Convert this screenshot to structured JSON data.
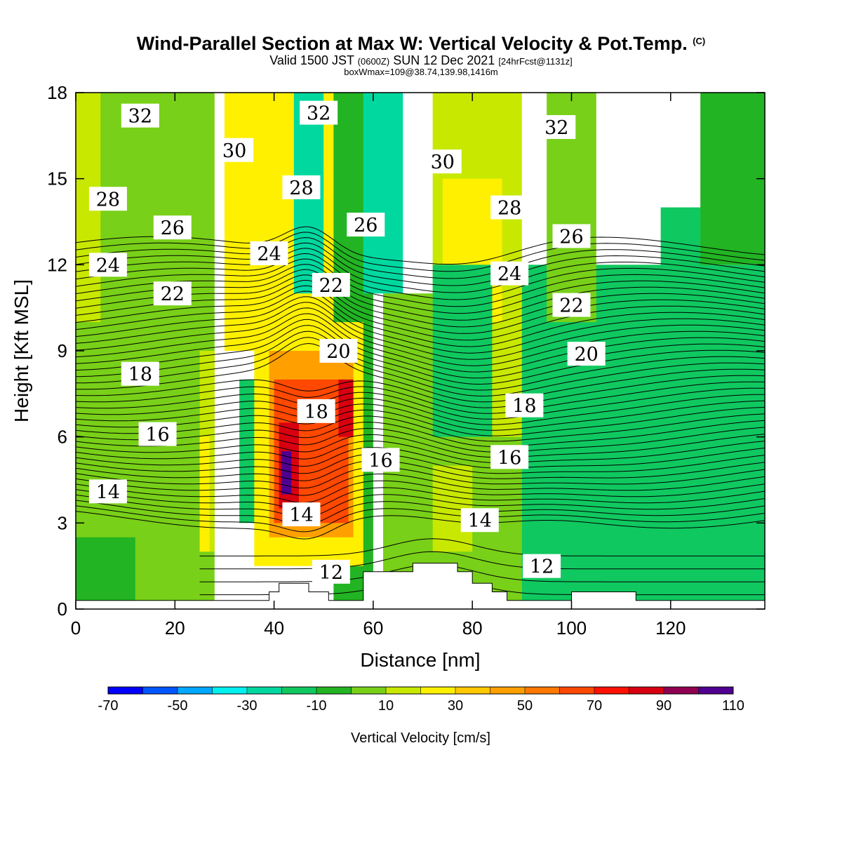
{
  "title": {
    "main": "Wind-Parallel Section at Max W: Vertical Velocity & Pot.Temp.",
    "copyright": "(C)",
    "valid_prefix": "Valid 1500 JST",
    "valid_utc": "(0600Z)",
    "valid_date": "SUN 12 Dec 2021",
    "forecast": "[24hrFcst@1131z]",
    "boxwmax": "boxWmax=109@38.74,139.98,1416m"
  },
  "chart_data": {
    "type": "heatmap",
    "xlabel": "Distance [nm]",
    "ylabel": "Height [Kft MSL]",
    "xlim": [
      0,
      139
    ],
    "ylim": [
      0,
      18
    ],
    "x_ticks": [
      "0",
      "20",
      "40",
      "60",
      "80",
      "100",
      "120"
    ],
    "y_ticks": [
      "0",
      "3",
      "6",
      "9",
      "12",
      "15",
      "18"
    ],
    "colorbar": {
      "title": "Vertical Velocity [cm/s]",
      "bins": [
        -70,
        -60,
        -50,
        -40,
        -30,
        -20,
        -10,
        0,
        10,
        20,
        30,
        40,
        50,
        60,
        70,
        80,
        90,
        100,
        110
      ],
      "tick_labels": [
        "-70",
        "-50",
        "-30",
        "-10",
        "10",
        "30",
        "50",
        "70",
        "90",
        "110"
      ],
      "colors": [
        "#0000ff",
        "#0055ff",
        "#00a8ff",
        "#00f0f0",
        "#00d8a0",
        "#10c860",
        "#22b422",
        "#78d018",
        "#c8e800",
        "#fff000",
        "#ffc800",
        "#ffa000",
        "#ff7800",
        "#ff4800",
        "#ff1000",
        "#d80010",
        "#900050",
        "#500090"
      ]
    },
    "vertical_velocity_regions": [
      {
        "x": [
          0,
          28
        ],
        "y": [
          0,
          18
        ],
        "w": 5
      },
      {
        "x": [
          0,
          12
        ],
        "y": [
          0,
          2.5
        ],
        "w": -5
      },
      {
        "x": [
          0,
          5
        ],
        "y": [
          10,
          18
        ],
        "w": 15
      },
      {
        "x": [
          25,
          28
        ],
        "y": [
          2,
          9
        ],
        "w": 15
      },
      {
        "x": [
          25,
          27
        ],
        "y": [
          2,
          6
        ],
        "w": 25
      },
      {
        "x": [
          30,
          52
        ],
        "y": [
          9,
          18
        ],
        "w": 25
      },
      {
        "x": [
          33,
          38
        ],
        "y": [
          3,
          8
        ],
        "w": -15
      },
      {
        "x": [
          44,
          50
        ],
        "y": [
          11,
          18
        ],
        "w": -25
      },
      {
        "x": [
          52,
          60
        ],
        "y": [
          0,
          18
        ],
        "w": -5
      },
      {
        "x": [
          58,
          66
        ],
        "y": [
          11,
          18
        ],
        "w": -25
      },
      {
        "x": [
          36,
          58
        ],
        "y": [
          1.5,
          10
        ],
        "w": 25
      },
      {
        "x": [
          39,
          56
        ],
        "y": [
          2.5,
          9
        ],
        "w": 45
      },
      {
        "x": [
          40,
          55
        ],
        "y": [
          3,
          8
        ],
        "w": 65
      },
      {
        "x": [
          41,
          45
        ],
        "y": [
          3.5,
          6.5
        ],
        "w": 85
      },
      {
        "x": [
          41.5,
          43.5
        ],
        "y": [
          4,
          5.5
        ],
        "w": 105
      },
      {
        "x": [
          53,
          56
        ],
        "y": [
          6,
          8
        ],
        "w": 85
      },
      {
        "x": [
          62,
          95
        ],
        "y": [
          0,
          11
        ],
        "w": 5
      },
      {
        "x": [
          72,
          90
        ],
        "y": [
          6,
          18
        ],
        "w": 15
      },
      {
        "x": [
          74,
          86
        ],
        "y": [
          10,
          15
        ],
        "w": 25
      },
      {
        "x": [
          72,
          80
        ],
        "y": [
          2,
          5
        ],
        "w": 15
      },
      {
        "x": [
          72,
          84
        ],
        "y": [
          6,
          12
        ],
        "w": -15
      },
      {
        "x": [
          90,
          139
        ],
        "y": [
          0,
          12
        ],
        "w": -15
      },
      {
        "x": [
          108,
          139
        ],
        "y": [
          1,
          7
        ],
        "w": -15
      },
      {
        "x": [
          95,
          105
        ],
        "y": [
          10,
          18
        ],
        "w": 5
      },
      {
        "x": [
          118,
          128
        ],
        "y": [
          2,
          14
        ],
        "w": -15
      },
      {
        "x": [
          126,
          139
        ],
        "y": [
          12,
          18
        ],
        "w": -5
      }
    ],
    "terrain": [
      [
        0,
        0.3
      ],
      [
        39,
        0.3
      ],
      [
        39,
        0.6
      ],
      [
        41,
        0.6
      ],
      [
        41,
        0.9
      ],
      [
        47,
        0.9
      ],
      [
        47,
        0.6
      ],
      [
        51,
        0.6
      ],
      [
        51,
        0.3
      ],
      [
        58,
        0.3
      ],
      [
        58,
        1.3
      ],
      [
        68,
        1.3
      ],
      [
        68,
        1.6
      ],
      [
        77,
        1.6
      ],
      [
        77,
        1.3
      ],
      [
        80,
        1.3
      ],
      [
        80,
        0.9
      ],
      [
        84,
        0.9
      ],
      [
        84,
        0.6
      ],
      [
        87,
        0.6
      ],
      [
        87,
        0.3
      ],
      [
        100,
        0.3
      ],
      [
        100,
        0.6
      ],
      [
        113,
        0.6
      ],
      [
        113,
        0.3
      ],
      [
        139,
        0.3
      ]
    ],
    "potential_temperature_contours": {
      "levels": [
        12,
        14,
        16,
        18,
        20,
        22,
        24,
        26,
        28,
        30,
        32
      ],
      "labels": [
        {
          "text": "32",
          "x": 13,
          "y": 17.2
        },
        {
          "text": "32",
          "x": 49,
          "y": 17.3
        },
        {
          "text": "32",
          "x": 97,
          "y": 16.8
        },
        {
          "text": "30",
          "x": 32,
          "y": 16.0
        },
        {
          "text": "30",
          "x": 74,
          "y": 15.6
        },
        {
          "text": "28",
          "x": 6.5,
          "y": 14.3
        },
        {
          "text": "28",
          "x": 45.5,
          "y": 14.7
        },
        {
          "text": "28",
          "x": 87.5,
          "y": 14.0
        },
        {
          "text": "26",
          "x": 19.5,
          "y": 13.3
        },
        {
          "text": "26",
          "x": 58.5,
          "y": 13.4
        },
        {
          "text": "26",
          "x": 100,
          "y": 13.0
        },
        {
          "text": "24",
          "x": 6.5,
          "y": 12.0
        },
        {
          "text": "24",
          "x": 39,
          "y": 12.4
        },
        {
          "text": "24",
          "x": 87.5,
          "y": 11.7
        },
        {
          "text": "22",
          "x": 19.5,
          "y": 11.0
        },
        {
          "text": "22",
          "x": 51.5,
          "y": 11.3
        },
        {
          "text": "22",
          "x": 100,
          "y": 10.6
        },
        {
          "text": "20",
          "x": 53,
          "y": 9.0
        },
        {
          "text": "20",
          "x": 103,
          "y": 8.9
        },
        {
          "text": "18",
          "x": 13,
          "y": 8.2
        },
        {
          "text": "18",
          "x": 48.5,
          "y": 6.9
        },
        {
          "text": "18",
          "x": 90.5,
          "y": 7.1
        },
        {
          "text": "16",
          "x": 16.5,
          "y": 6.1
        },
        {
          "text": "16",
          "x": 61.5,
          "y": 5.2
        },
        {
          "text": "16",
          "x": 87.5,
          "y": 5.3
        },
        {
          "text": "14",
          "x": 6.5,
          "y": 4.1
        },
        {
          "text": "14",
          "x": 45.5,
          "y": 3.3
        },
        {
          "text": "14",
          "x": 81.5,
          "y": 3.1
        },
        {
          "text": "12",
          "x": 51.5,
          "y": 1.3
        },
        {
          "text": "12",
          "x": 94,
          "y": 1.5
        }
      ]
    }
  }
}
